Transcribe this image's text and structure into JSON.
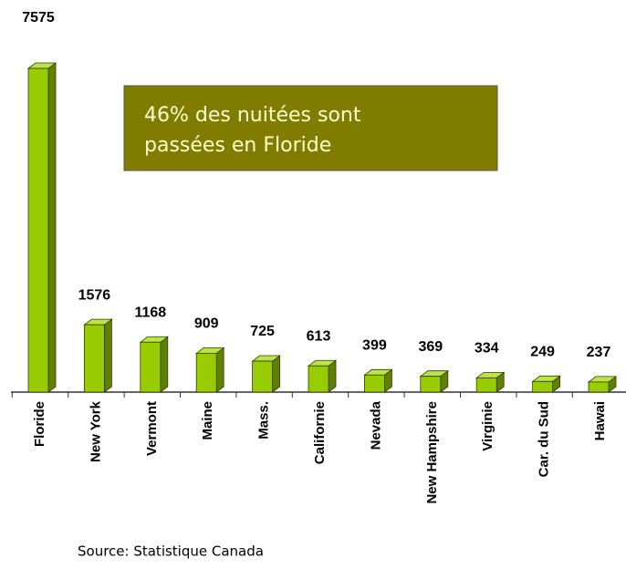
{
  "chart_data": {
    "type": "bar3d",
    "categories": [
      "Floride",
      "New York",
      "Vermont",
      "Maine",
      "Mass.",
      "Californie",
      "Nevada",
      "New Hampshire",
      "Virginie",
      "Car. du Sud",
      "Hawai"
    ],
    "values": [
      7575,
      1576,
      1168,
      909,
      725,
      613,
      399,
      369,
      334,
      249,
      237
    ],
    "color": "#99cc00",
    "annotation": [
      "46% des nuitées sont",
      "passées en Floride"
    ],
    "source": "Source: Statistique Canada"
  }
}
